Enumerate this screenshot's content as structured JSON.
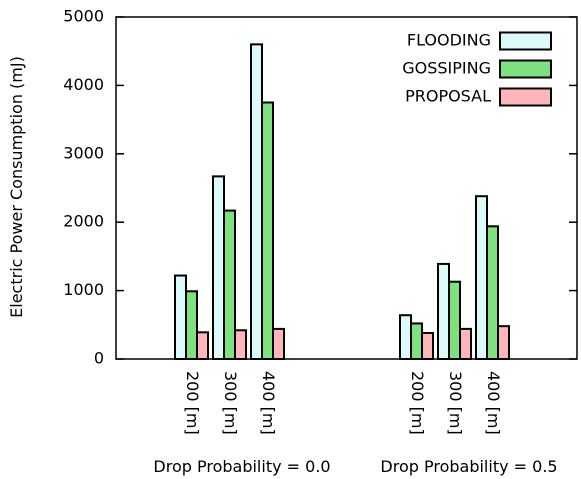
{
  "chart_data": {
    "type": "bar",
    "title": "",
    "ylabel": "Electric Power Consumption (mJ)",
    "xlabel": "",
    "ylim": [
      0,
      5000
    ],
    "yticks": [
      0,
      1000,
      2000,
      3000,
      4000,
      5000
    ],
    "grid": false,
    "legend_position": "top-right",
    "groups": [
      {
        "label": "Drop Probability = 0.0",
        "categories": [
          "200 [m]",
          "300 [m]",
          "400 [m]"
        ],
        "series": [
          {
            "name": "FLOODING",
            "values": [
              1220,
              2670,
              4600
            ]
          },
          {
            "name": "GOSSIPING",
            "values": [
              990,
              2170,
              3750
            ]
          },
          {
            "name": "PROPOSAL",
            "values": [
              390,
              420,
              440
            ]
          }
        ]
      },
      {
        "label": "Drop Probability = 0.5",
        "categories": [
          "200 [m]",
          "300 [m]",
          "400 [m]"
        ],
        "series": [
          {
            "name": "FLOODING",
            "values": [
              640,
              1390,
              2380
            ]
          },
          {
            "name": "GOSSIPING",
            "values": [
              520,
              1130,
              1940
            ]
          },
          {
            "name": "PROPOSAL",
            "values": [
              380,
              440,
              480
            ]
          }
        ]
      }
    ],
    "colors": {
      "FLOODING": "#dcfafa",
      "GOSSIPING": "#7ee07e",
      "PROPOSAL": "#ffb6bb"
    }
  }
}
